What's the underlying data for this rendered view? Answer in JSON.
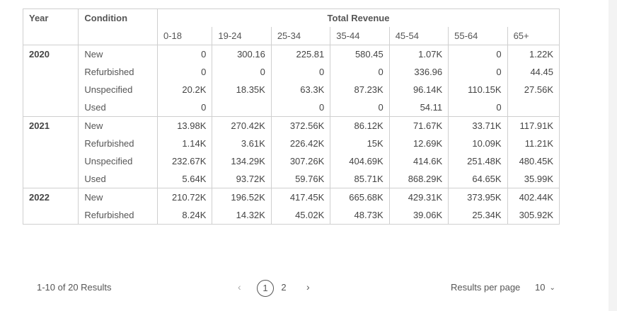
{
  "table": {
    "year_header": "Year",
    "condition_header": "Condition",
    "group_header": "Total Revenue",
    "age_headers": [
      "0-18",
      "19-24",
      "25-34",
      "35-44",
      "45-54",
      "55-64",
      "65+"
    ],
    "groups": [
      {
        "year": "2020",
        "rows": [
          {
            "condition": "New",
            "values": [
              "0",
              "300.16",
              "225.81",
              "580.45",
              "1.07K",
              "0",
              "1.22K"
            ]
          },
          {
            "condition": "Refurbished",
            "values": [
              "0",
              "0",
              "0",
              "0",
              "336.96",
              "0",
              "44.45"
            ]
          },
          {
            "condition": "Unspecified",
            "values": [
              "20.2K",
              "18.35K",
              "63.3K",
              "87.23K",
              "96.14K",
              "110.15K",
              "27.56K"
            ]
          },
          {
            "condition": "Used",
            "values": [
              "0",
              "",
              "0",
              "0",
              "54.11",
              "0",
              ""
            ]
          }
        ]
      },
      {
        "year": "2021",
        "rows": [
          {
            "condition": "New",
            "values": [
              "13.98K",
              "270.42K",
              "372.56K",
              "86.12K",
              "71.67K",
              "33.71K",
              "117.91K"
            ]
          },
          {
            "condition": "Refurbished",
            "values": [
              "1.14K",
              "3.61K",
              "226.42K",
              "15K",
              "12.69K",
              "10.09K",
              "11.21K"
            ]
          },
          {
            "condition": "Unspecified",
            "values": [
              "232.67K",
              "134.29K",
              "307.26K",
              "404.69K",
              "414.6K",
              "251.48K",
              "480.45K"
            ]
          },
          {
            "condition": "Used",
            "values": [
              "5.64K",
              "93.72K",
              "59.76K",
              "85.71K",
              "868.29K",
              "64.65K",
              "35.99K"
            ]
          }
        ]
      },
      {
        "year": "2022",
        "rows": [
          {
            "condition": "New",
            "values": [
              "210.72K",
              "196.52K",
              "417.45K",
              "665.68K",
              "429.31K",
              "373.95K",
              "402.44K"
            ]
          },
          {
            "condition": "Refurbished",
            "values": [
              "8.24K",
              "14.32K",
              "45.02K",
              "48.73K",
              "39.06K",
              "25.34K",
              "305.92K"
            ]
          }
        ]
      }
    ]
  },
  "footer": {
    "results_text": "1-10 of 20 Results",
    "prev_icon": "‹",
    "next_icon": "›",
    "pages": [
      "1",
      "2"
    ],
    "current_page": "1",
    "results_per_page_label": "Results per page",
    "results_per_page_value": "10",
    "chevron_icon": "chevron-down-icon"
  }
}
